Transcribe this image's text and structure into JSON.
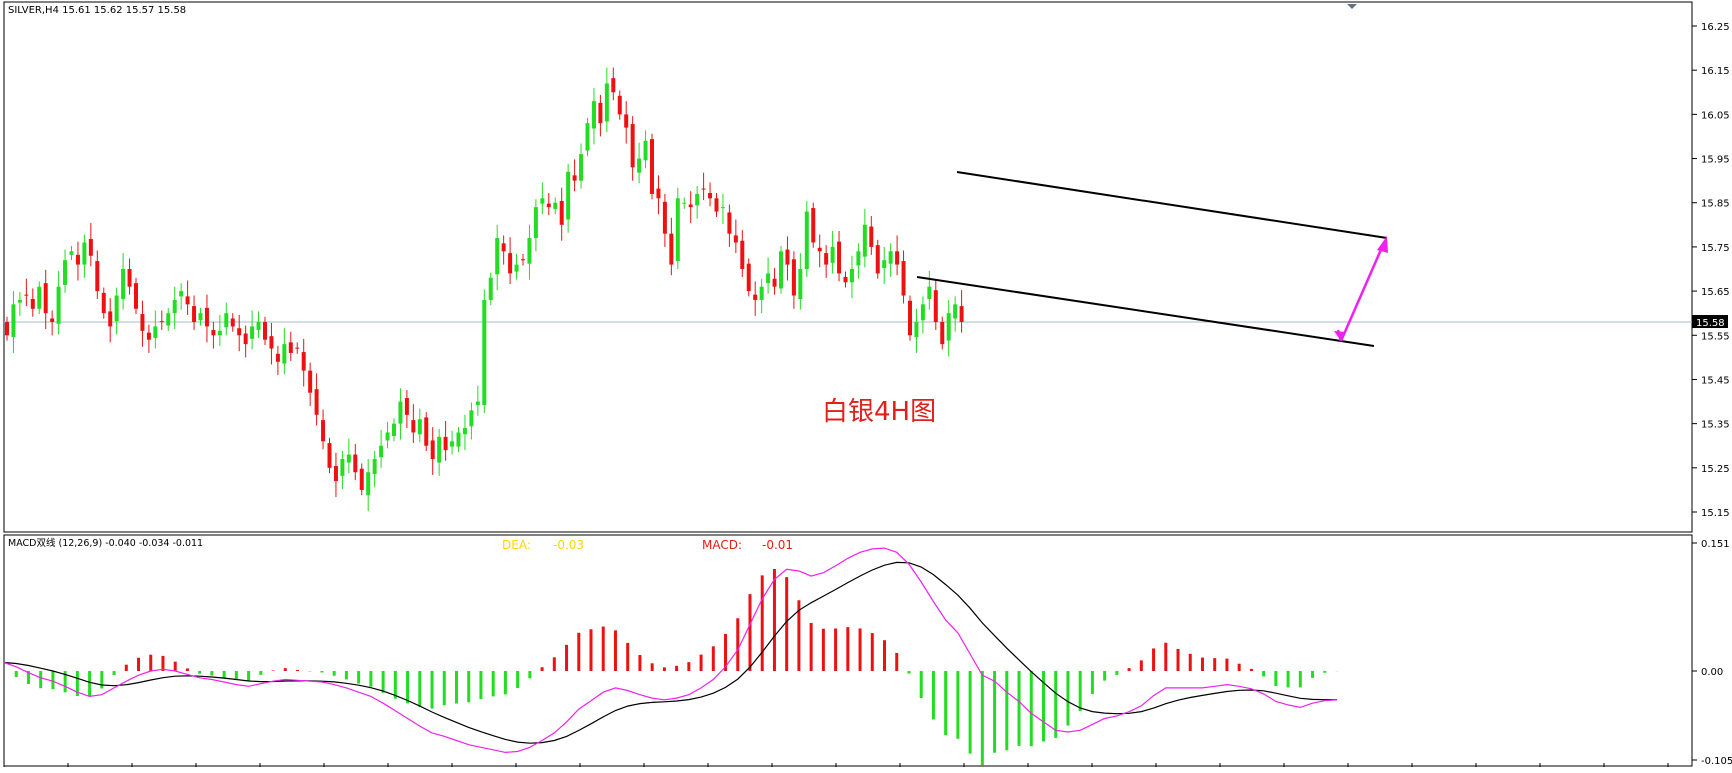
{
  "header": {
    "symbol_line": "SILVER,H4  15.61 15.62 15.57 15.58"
  },
  "annotation": {
    "title_cn": "白银4H图",
    "title_color": "#e0201a"
  },
  "macd_panel": {
    "label": "MACD双线 (12,26,9) -0.040 -0.034 -0.011",
    "dea_label": "DEA:",
    "dea_value": "-0.03",
    "dea_color": "#ffd700",
    "macd_label": "MACD:",
    "macd_value": "-0.01",
    "macd_color": "#e0201a"
  },
  "price_axis": {
    "ticks": [
      "16.25",
      "16.15",
      "16.05",
      "15.95",
      "15.85",
      "15.75",
      "15.65",
      "15.55",
      "15.45",
      "15.35",
      "15.25",
      "15.15"
    ],
    "current_price": "15.58"
  },
  "macd_axis": {
    "ticks": [
      "0.151",
      "0.00",
      "-0.105"
    ]
  },
  "colors": {
    "bull": "#22dd22",
    "bear": "#ee1111",
    "channel": "#000000",
    "arrow": "#ee22ee",
    "signal_line": "#000000",
    "macd_line": "#ee22ee",
    "hist_pos": "#ee1111",
    "hist_neg": "#22dd22",
    "current_price_line": "#a8b8c8"
  },
  "chart_data": [
    {
      "type": "candlestick",
      "title": "SILVER,H4",
      "ylim": [
        15.11,
        16.28
      ],
      "current_price": 15.58,
      "grid": false,
      "closes": [
        15.55,
        15.62,
        15.63,
        15.64,
        15.61,
        15.66,
        15.6,
        15.58,
        15.66,
        15.72,
        15.74,
        15.71,
        15.76,
        15.73,
        15.65,
        15.6,
        15.57,
        15.64,
        15.7,
        15.66,
        15.61,
        15.56,
        15.54,
        15.57,
        15.58,
        15.6,
        15.63,
        15.65,
        15.62,
        15.58,
        15.6,
        15.57,
        15.55,
        15.56,
        15.6,
        15.57,
        15.55,
        15.53,
        15.57,
        15.58,
        15.54,
        15.52,
        15.49,
        15.53,
        15.51,
        15.52,
        15.47,
        15.42,
        15.37,
        15.31,
        15.25,
        15.22,
        15.27,
        15.28,
        15.24,
        15.2,
        15.24,
        15.27,
        15.3,
        15.33,
        15.35,
        15.4,
        15.37,
        15.33,
        15.36,
        15.3,
        15.27,
        15.32,
        15.29,
        15.31,
        15.33,
        15.34,
        15.38,
        15.4,
        15.63,
        15.68,
        15.77,
        15.74,
        15.69,
        15.71,
        15.72,
        15.77,
        15.84,
        15.86,
        15.84,
        15.85,
        15.8,
        15.92,
        15.9,
        15.96,
        16.03,
        16.08,
        16.03,
        16.12,
        16.1,
        16.05,
        16.02,
        15.93,
        15.95,
        15.99,
        15.87,
        15.86,
        15.78,
        15.71,
        15.86,
        15.85,
        15.84,
        15.87,
        15.88,
        15.86,
        15.83,
        15.84,
        15.78,
        15.76,
        15.7,
        15.65,
        15.63,
        15.66,
        15.69,
        15.66,
        15.74,
        15.71,
        15.64,
        15.7,
        15.83,
        15.76,
        15.74,
        15.71,
        15.75,
        15.69,
        15.67,
        15.7,
        15.74,
        15.8,
        15.75,
        15.69,
        15.72,
        15.74,
        15.71,
        15.64,
        15.55,
        15.58,
        15.62,
        15.66,
        15.58,
        15.53,
        15.6,
        15.62,
        15.58
      ]
    },
    {
      "type": "line",
      "title": "MACD双线 (12,26,9)",
      "ylim": [
        -0.105,
        0.151
      ],
      "series_macd": [
        0.01,
        0.005,
        -0.002,
        -0.008,
        -0.012,
        -0.018,
        -0.025,
        -0.03,
        -0.028,
        -0.02,
        -0.012,
        -0.005,
        0.0,
        0.002,
        0.0,
        -0.004,
        -0.008,
        -0.01,
        -0.013,
        -0.016,
        -0.018,
        -0.015,
        -0.012,
        -0.01,
        -0.011,
        -0.012,
        -0.013,
        -0.016,
        -0.02,
        -0.025,
        -0.03,
        -0.038,
        -0.047,
        -0.056,
        -0.065,
        -0.073,
        -0.077,
        -0.082,
        -0.087,
        -0.09,
        -0.093,
        -0.096,
        -0.095,
        -0.09,
        -0.082,
        -0.073,
        -0.06,
        -0.045,
        -0.035,
        -0.025,
        -0.02,
        -0.023,
        -0.028,
        -0.032,
        -0.034,
        -0.032,
        -0.028,
        -0.02,
        -0.01,
        0.005,
        0.025,
        0.055,
        0.085,
        0.108,
        0.12,
        0.118,
        0.112,
        0.116,
        0.124,
        0.133,
        0.14,
        0.144,
        0.145,
        0.14,
        0.126,
        0.105,
        0.082,
        0.06,
        0.045,
        0.02,
        -0.005,
        -0.012,
        -0.025,
        -0.036,
        -0.05,
        -0.06,
        -0.07,
        -0.072,
        -0.07,
        -0.063,
        -0.056,
        -0.053,
        -0.048,
        -0.041,
        -0.029,
        -0.02,
        -0.02,
        -0.02,
        -0.02,
        -0.018,
        -0.016,
        -0.018,
        -0.021,
        -0.027,
        -0.036,
        -0.04,
        -0.043,
        -0.038,
        -0.035,
        -0.034
      ]
    }
  ]
}
